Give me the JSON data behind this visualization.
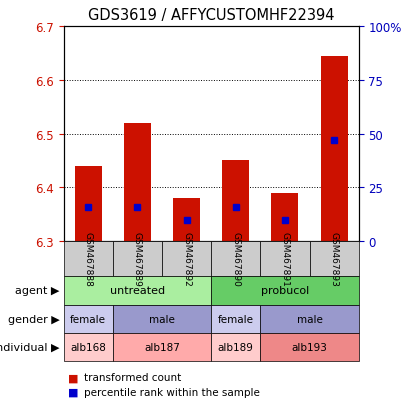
{
  "title": "GDS3619 / AFFYCUSTOMHF22394",
  "samples": [
    "GSM467888",
    "GSM467889",
    "GSM467892",
    "GSM467890",
    "GSM467891",
    "GSM467893"
  ],
  "red_values": [
    6.44,
    6.52,
    6.38,
    6.45,
    6.39,
    6.645
  ],
  "blue_values_pct": [
    16,
    16,
    10,
    16,
    10,
    47
  ],
  "ylim": [
    6.3,
    6.7
  ],
  "y2lim": [
    0,
    100
  ],
  "yticks": [
    6.3,
    6.4,
    6.5,
    6.6,
    6.7
  ],
  "y2ticks": [
    0,
    25,
    50,
    75,
    100
  ],
  "y2ticklabels": [
    "0",
    "25",
    "50",
    "75",
    "100%"
  ],
  "bar_width": 0.55,
  "red_color": "#cc1100",
  "blue_color": "#0000cc",
  "base_value": 6.3,
  "agent_groups": [
    {
      "label": "untreated",
      "start": 0,
      "end": 3,
      "color": "#aaeea0"
    },
    {
      "label": "probucol",
      "start": 3,
      "end": 6,
      "color": "#66cc66"
    }
  ],
  "gender_groups": [
    {
      "label": "female",
      "start": 0,
      "end": 1,
      "color": "#ccccee"
    },
    {
      "label": "male",
      "start": 1,
      "end": 3,
      "color": "#9999cc"
    },
    {
      "label": "female",
      "start": 3,
      "end": 4,
      "color": "#ccccee"
    },
    {
      "label": "male",
      "start": 4,
      "end": 6,
      "color": "#9999cc"
    }
  ],
  "individual_groups": [
    {
      "label": "alb168",
      "start": 0,
      "end": 1,
      "color": "#ffcccc"
    },
    {
      "label": "alb187",
      "start": 1,
      "end": 3,
      "color": "#ffaaaa"
    },
    {
      "label": "alb189",
      "start": 3,
      "end": 4,
      "color": "#ffcccc"
    },
    {
      "label": "alb193",
      "start": 4,
      "end": 6,
      "color": "#ee8888"
    }
  ],
  "row_labels": [
    "agent",
    "gender",
    "individual"
  ],
  "legend_items": [
    {
      "label": "transformed count",
      "color": "#cc1100"
    },
    {
      "label": "percentile rank within the sample",
      "color": "#0000cc"
    }
  ],
  "background_color": "#ffffff",
  "sample_box_color": "#cccccc",
  "tick_color_left": "#cc1100",
  "tick_color_right": "#0000bb"
}
